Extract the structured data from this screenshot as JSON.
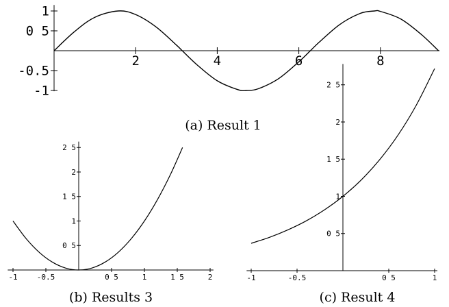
{
  "chart_data": [
    {
      "id": "a",
      "type": "line",
      "caption": "(a) Result 1",
      "title": "",
      "xlabel": "",
      "ylabel": "",
      "xlim": [
        0,
        9.42
      ],
      "ylim": [
        -1,
        1
      ],
      "x_ticks": [
        "2",
        "4",
        "6",
        "8"
      ],
      "y_ticks": [
        "-1",
        "-0.5",
        "0 5",
        "1"
      ],
      "series": [
        {
          "x": [
            0,
            0.5,
            1,
            1.5708,
            2,
            2.5,
            3,
            3.1416,
            3.5,
            4,
            4.5,
            4.7124,
            5,
            5.5,
            6,
            6.2832,
            6.5,
            7,
            7.5,
            7.854,
            8,
            8.5,
            9,
            9.4248
          ],
          "y": [
            0,
            0.479,
            0.841,
            1,
            0.909,
            0.598,
            0.141,
            0,
            -0.351,
            -0.757,
            -0.978,
            -1,
            -0.959,
            -0.706,
            -0.279,
            0,
            0.215,
            0.657,
            0.938,
            1,
            0.989,
            0.798,
            0.412,
            0
          ]
        }
      ]
    },
    {
      "id": "b",
      "type": "line",
      "caption": "(b) Results 3",
      "title": "",
      "xlabel": "",
      "ylabel": "",
      "xlim": [
        -1,
        2
      ],
      "ylim": [
        0,
        2.5
      ],
      "x_ticks": [
        "-1",
        "-0.5",
        "0 5",
        "1",
        "1 5",
        "2"
      ],
      "y_ticks": [
        "0 5",
        "1",
        "1 5",
        "2",
        "2 5"
      ],
      "series": [
        {
          "x": [
            -1,
            -0.8,
            -0.6,
            -0.4,
            -0.2,
            0,
            0.2,
            0.4,
            0.6,
            0.8,
            1,
            1.2,
            1.4,
            1.58
          ],
          "y": [
            1,
            0.64,
            0.36,
            0.16,
            0.04,
            0,
            0.04,
            0.16,
            0.36,
            0.64,
            1,
            1.44,
            1.96,
            2.5
          ]
        }
      ]
    },
    {
      "id": "c",
      "type": "line",
      "caption": "(c) Result 4",
      "title": "",
      "xlabel": "",
      "ylabel": "",
      "xlim": [
        -1,
        1
      ],
      "ylim": [
        0.37,
        2.72
      ],
      "x_ticks": [
        "-1",
        "-0.5",
        "0 5",
        "1"
      ],
      "y_ticks": [
        "0 5",
        "1",
        "1 5",
        "2",
        "2 5"
      ],
      "series": [
        {
          "x": [
            -1,
            -0.8,
            -0.6,
            -0.4,
            -0.2,
            0,
            0.2,
            0.4,
            0.6,
            0.8,
            1
          ],
          "y": [
            0.368,
            0.449,
            0.549,
            0.67,
            0.819,
            1,
            1.221,
            1.492,
            1.822,
            2.226,
            2.718
          ]
        }
      ]
    }
  ]
}
